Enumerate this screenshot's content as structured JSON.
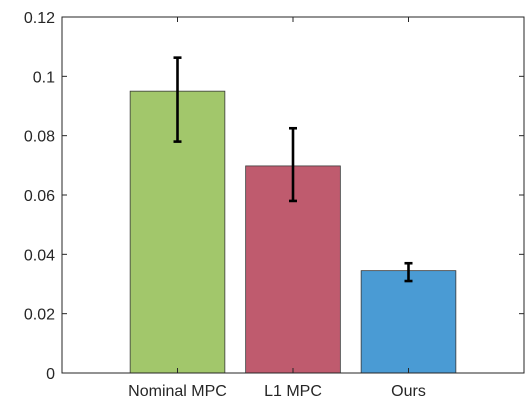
{
  "chart_data": {
    "type": "bar",
    "title": "",
    "xlabel": "",
    "ylabel": "",
    "categories": [
      "Nominal MPC",
      "L1 MPC",
      "Ours"
    ],
    "values": [
      0.095,
      0.0698,
      0.0345
    ],
    "error_low": [
      0.078,
      0.058,
      0.031
    ],
    "error_high": [
      0.1063,
      0.0825,
      0.037
    ],
    "colors": [
      "#a2c76b",
      "#bf5b6e",
      "#4a9bd4"
    ],
    "ylim": [
      0,
      0.12
    ],
    "yticks": [
      0,
      0.02,
      0.04,
      0.06,
      0.08,
      0.1,
      0.12
    ],
    "ytick_labels": [
      "0",
      "0.02",
      "0.04",
      "0.06",
      "0.08",
      "0.1",
      "0.12"
    ],
    "grid": false,
    "box": true
  }
}
